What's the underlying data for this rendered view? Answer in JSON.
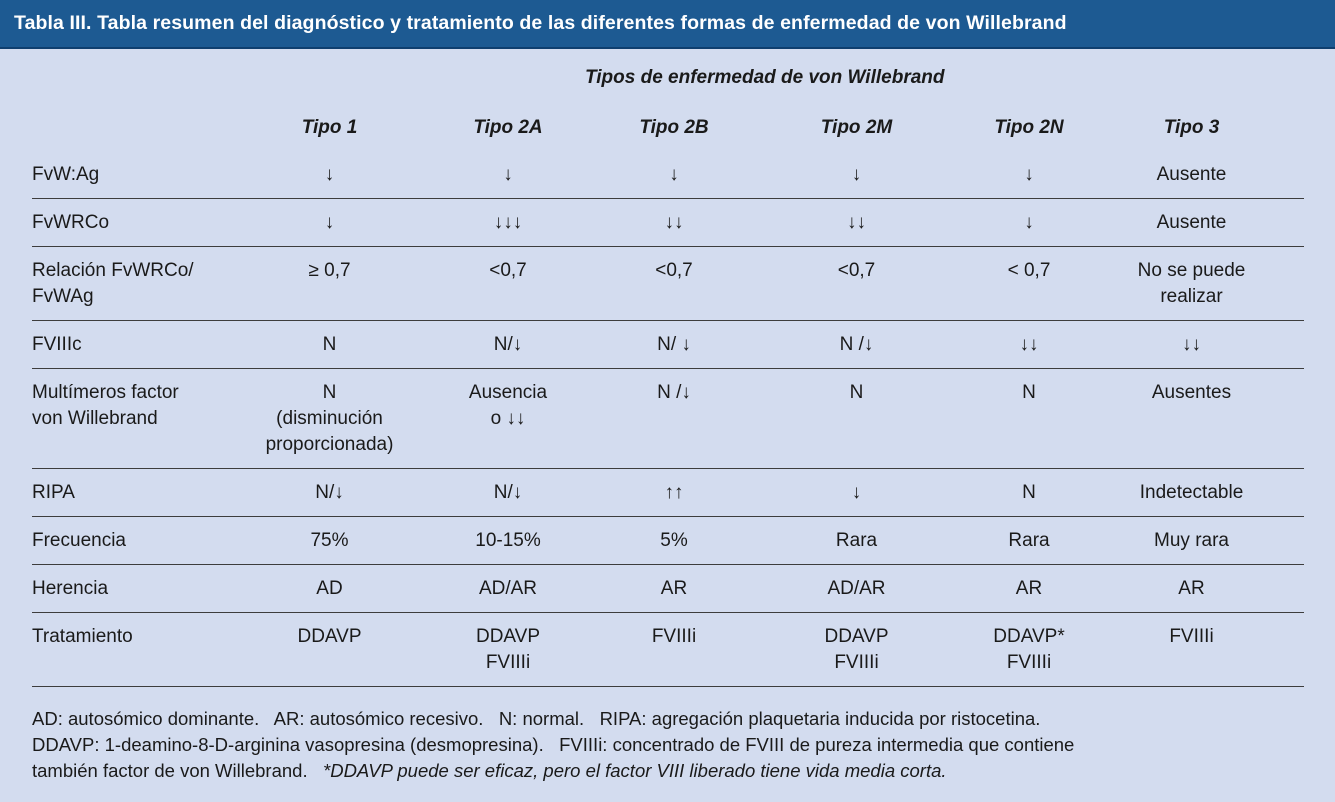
{
  "title": "Tabla III.  Tabla resumen del diagnóstico y tratamiento de las diferentes formas de enfermedad de von Willebrand",
  "group_header": "Tipos de enfermedad de von Willebrand",
  "columns": [
    "Tipo 1",
    "Tipo 2A",
    "Tipo 2B",
    "Tipo 2M",
    "Tipo 2N",
    "Tipo 3"
  ],
  "rows": [
    {
      "label": "FvW:Ag",
      "values": [
        "↓",
        "↓",
        "↓",
        "↓",
        "↓",
        "Ausente"
      ]
    },
    {
      "label": "FvWRCo",
      "values": [
        "↓",
        "↓↓↓",
        "↓↓",
        "↓↓",
        "↓",
        "Ausente"
      ]
    },
    {
      "label": "Relación FvWRCo/\nFvWAg",
      "values": [
        "≥ 0,7",
        "<0,7",
        "<0,7",
        "<0,7",
        "< 0,7",
        "No se puede\nrealizar"
      ]
    },
    {
      "label": "FVIIIc",
      "values": [
        "N",
        "N/↓",
        "N/ ↓",
        "N /↓",
        "↓↓",
        "↓↓"
      ]
    },
    {
      "label": "Multímeros factor\nvon Willebrand",
      "values": [
        "N\n(disminución\nproporcionada)",
        "Ausencia\no ↓↓",
        "N /↓",
        "N",
        "N",
        "Ausentes"
      ]
    },
    {
      "label": "RIPA",
      "values": [
        "N/↓",
        "N/↓",
        "↑↑",
        "↓",
        "N",
        "Indetectable"
      ]
    },
    {
      "label": "Frecuencia",
      "values": [
        "75%",
        "10-15%",
        "5%",
        "Rara",
        "Rara",
        "Muy rara"
      ]
    },
    {
      "label": "Herencia",
      "values": [
        "AD",
        "AD/AR",
        "AR",
        "AD/AR",
        "AR",
        "AR"
      ]
    },
    {
      "label": "Tratamiento",
      "values": [
        "DDAVP",
        "DDAVP\nFVIIIi",
        "FVIIIi",
        "DDAVP\nFVIIIi",
        "DDAVP*\nFVIIIi",
        "FVIIIi"
      ]
    }
  ],
  "footnote": {
    "line1": "AD: autosómico dominante.   AR: autosómico recesivo.   N: normal.   RIPA: agregación plaquetaria inducida por ristocetina.",
    "line2": "DDAVP: 1-deamino-8-D-arginina vasopresina (desmopresina).   FVIIIi: concentrado de FVIII de pureza intermedia que contiene",
    "line3_plain": "también factor de von Willebrand.   ",
    "line3_italic": "*DDAVP puede ser eficaz, pero el factor VIII liberado tiene vida media corta."
  },
  "colors": {
    "title_bar": "#1d5a92",
    "background": "#d3dcef",
    "title_text": "#ffffff"
  }
}
